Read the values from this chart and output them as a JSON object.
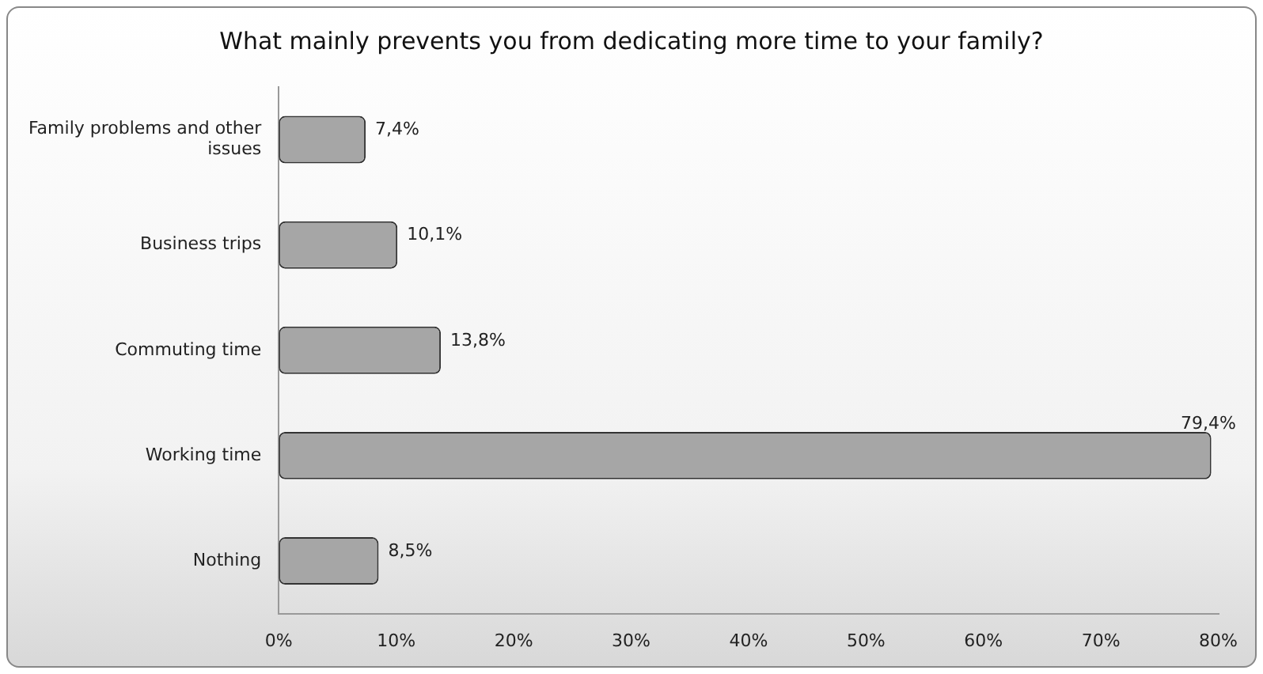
{
  "chart_data": {
    "type": "bar",
    "orientation": "horizontal",
    "title": "What mainly prevents you from dedicating more time to your family?",
    "categories": [
      "Family problems and other issues",
      "Business trips",
      "Commuting time",
      "Working time",
      "Nothing"
    ],
    "values": [
      7.4,
      10.1,
      13.8,
      79.4,
      8.5
    ],
    "value_labels": [
      "7,4%",
      "10,1%",
      "13,8%",
      "79,4%",
      "8,5%"
    ],
    "color": "#a6a6a6",
    "xlim": [
      0,
      80
    ],
    "xticks": [
      {
        "value": 0,
        "label": "0%"
      },
      {
        "value": 10,
        "label": "10%"
      },
      {
        "value": 20,
        "label": "20%"
      },
      {
        "value": 30,
        "label": "30%"
      },
      {
        "value": 40,
        "label": "40%"
      },
      {
        "value": 50,
        "label": "50%"
      },
      {
        "value": 60,
        "label": "60%"
      },
      {
        "value": 70,
        "label": "70%"
      },
      {
        "value": 80,
        "label": "80%"
      }
    ],
    "grid": false,
    "legend": false
  }
}
